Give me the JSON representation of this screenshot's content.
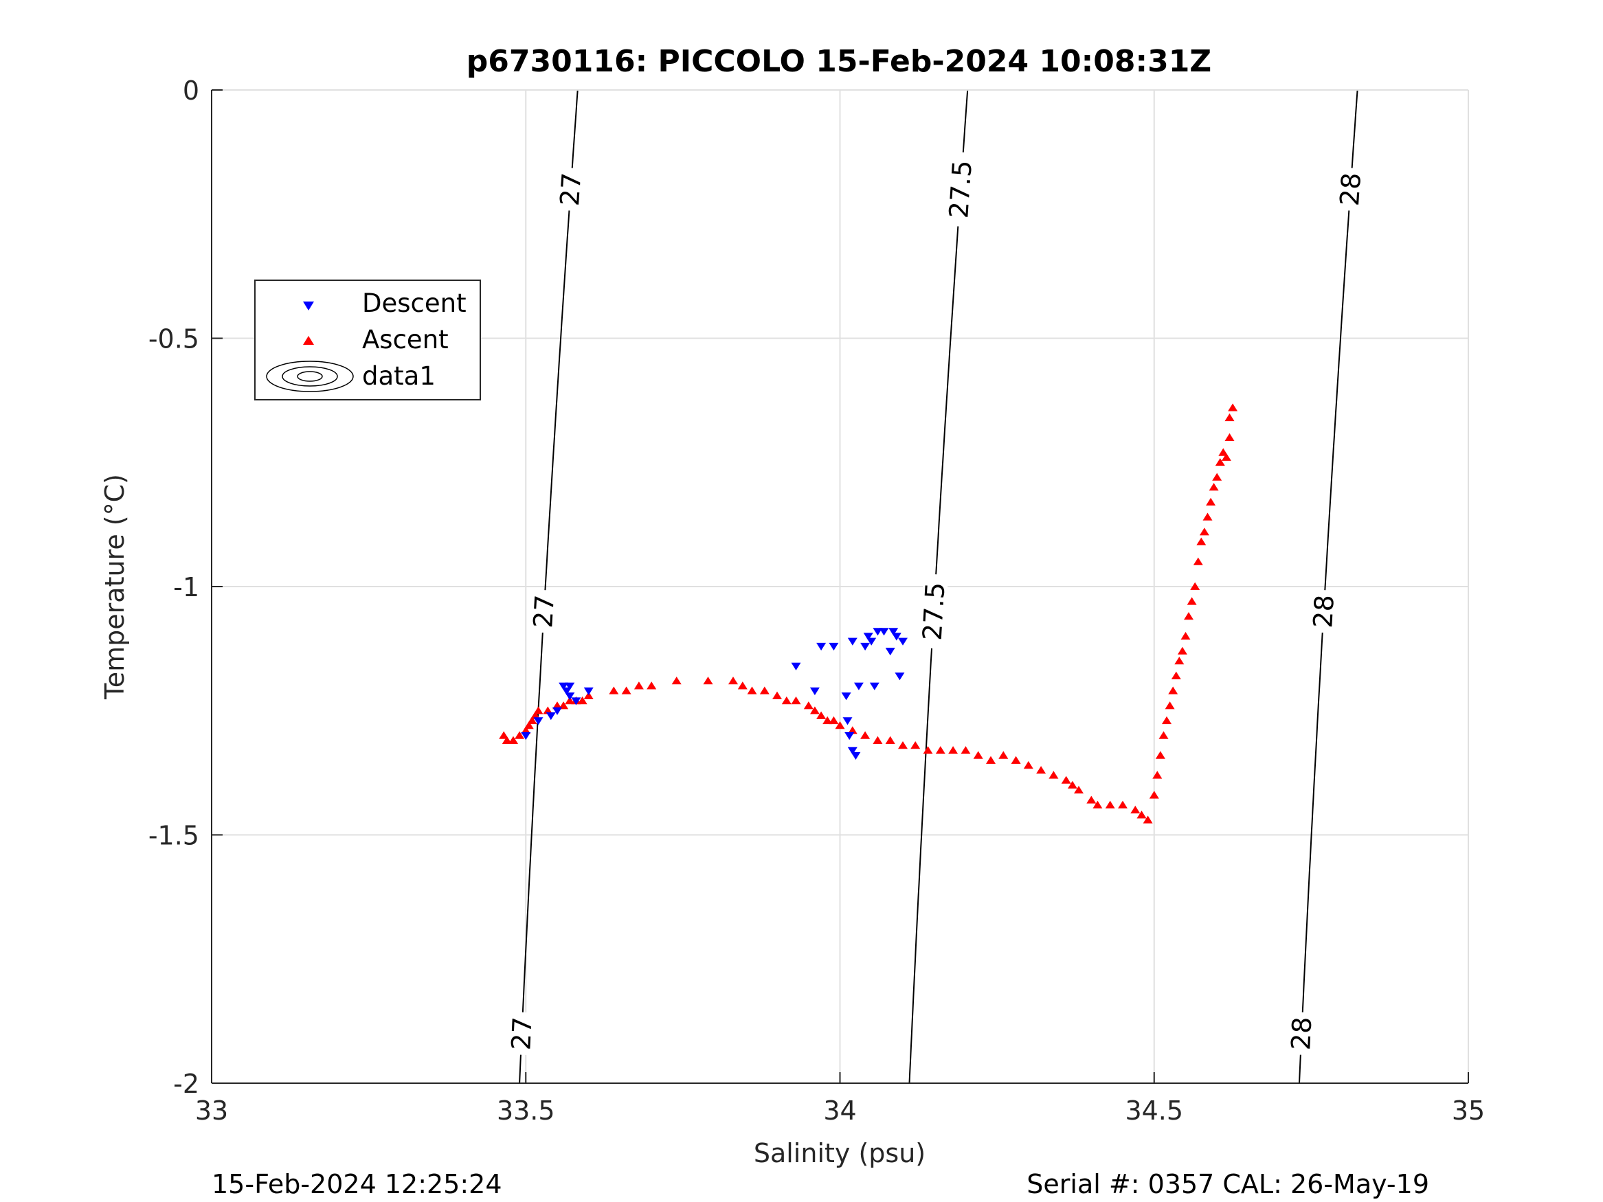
{
  "chart_data": {
    "type": "scatter",
    "title": "p6730116: PICCOLO 15-Feb-2024 10:08:31Z",
    "xlabel": "Salinity (psu)",
    "ylabel": "Temperature (°C)",
    "xlim": [
      33,
      35
    ],
    "ylim": [
      -2,
      0
    ],
    "xticks": [
      "33",
      "33.5",
      "34",
      "34.5",
      "35"
    ],
    "yticks": [
      "0",
      "-0.5",
      "-1",
      "-1.5",
      "-2"
    ],
    "grid": true,
    "legend_position": "upper-left",
    "legend": [
      "Descent",
      "Ascent",
      "data1"
    ],
    "footer_left": "15-Feb-2024 12:25:24",
    "footer_right": "Serial #: 0357  CAL: 26-May-19",
    "series": [
      {
        "name": "Descent",
        "marker": "triangle-down",
        "color": "#0000ff",
        "points": [
          [
            33.5,
            -1.3
          ],
          [
            33.52,
            -1.27
          ],
          [
            33.54,
            -1.26
          ],
          [
            33.55,
            -1.25
          ],
          [
            33.56,
            -1.2
          ],
          [
            33.565,
            -1.21
          ],
          [
            33.57,
            -1.2
          ],
          [
            33.57,
            -1.22
          ],
          [
            33.58,
            -1.23
          ],
          [
            33.6,
            -1.21
          ],
          [
            33.93,
            -1.16
          ],
          [
            33.96,
            -1.21
          ],
          [
            33.97,
            -1.12
          ],
          [
            33.99,
            -1.12
          ],
          [
            34.01,
            -1.22
          ],
          [
            34.012,
            -1.27
          ],
          [
            34.015,
            -1.3
          ],
          [
            34.02,
            -1.11
          ],
          [
            34.02,
            -1.33
          ],
          [
            34.025,
            -1.34
          ],
          [
            34.03,
            -1.2
          ],
          [
            34.04,
            -1.12
          ],
          [
            34.045,
            -1.1
          ],
          [
            34.05,
            -1.11
          ],
          [
            34.055,
            -1.2
          ],
          [
            34.06,
            -1.09
          ],
          [
            34.07,
            -1.09
          ],
          [
            34.08,
            -1.13
          ],
          [
            34.085,
            -1.09
          ],
          [
            34.09,
            -1.1
          ],
          [
            34.095,
            -1.18
          ],
          [
            34.1,
            -1.11
          ]
        ]
      },
      {
        "name": "Ascent",
        "marker": "triangle-up",
        "color": "#ff0000",
        "points": [
          [
            33.465,
            -1.3
          ],
          [
            33.47,
            -1.31
          ],
          [
            33.48,
            -1.31
          ],
          [
            33.49,
            -1.3
          ],
          [
            33.5,
            -1.29
          ],
          [
            33.505,
            -1.28
          ],
          [
            33.51,
            -1.27
          ],
          [
            33.515,
            -1.26
          ],
          [
            33.52,
            -1.25
          ],
          [
            33.535,
            -1.25
          ],
          [
            33.55,
            -1.24
          ],
          [
            33.56,
            -1.24
          ],
          [
            33.57,
            -1.23
          ],
          [
            33.58,
            -1.23
          ],
          [
            33.59,
            -1.23
          ],
          [
            33.6,
            -1.22
          ],
          [
            33.64,
            -1.21
          ],
          [
            33.66,
            -1.21
          ],
          [
            33.68,
            -1.2
          ],
          [
            33.7,
            -1.2
          ],
          [
            33.74,
            -1.19
          ],
          [
            33.79,
            -1.19
          ],
          [
            33.83,
            -1.19
          ],
          [
            33.845,
            -1.2
          ],
          [
            33.86,
            -1.21
          ],
          [
            33.88,
            -1.21
          ],
          [
            33.9,
            -1.22
          ],
          [
            33.915,
            -1.23
          ],
          [
            33.93,
            -1.23
          ],
          [
            33.95,
            -1.24
          ],
          [
            33.96,
            -1.25
          ],
          [
            33.97,
            -1.26
          ],
          [
            33.98,
            -1.27
          ],
          [
            33.99,
            -1.27
          ],
          [
            34.0,
            -1.28
          ],
          [
            34.02,
            -1.29
          ],
          [
            34.04,
            -1.3
          ],
          [
            34.06,
            -1.31
          ],
          [
            34.08,
            -1.31
          ],
          [
            34.1,
            -1.32
          ],
          [
            34.12,
            -1.32
          ],
          [
            34.14,
            -1.33
          ],
          [
            34.16,
            -1.33
          ],
          [
            34.18,
            -1.33
          ],
          [
            34.2,
            -1.33
          ],
          [
            34.22,
            -1.34
          ],
          [
            34.24,
            -1.35
          ],
          [
            34.26,
            -1.34
          ],
          [
            34.28,
            -1.35
          ],
          [
            34.3,
            -1.36
          ],
          [
            34.32,
            -1.37
          ],
          [
            34.34,
            -1.38
          ],
          [
            34.36,
            -1.39
          ],
          [
            34.37,
            -1.4
          ],
          [
            34.38,
            -1.41
          ],
          [
            34.4,
            -1.43
          ],
          [
            34.41,
            -1.44
          ],
          [
            34.43,
            -1.44
          ],
          [
            34.45,
            -1.44
          ],
          [
            34.47,
            -1.45
          ],
          [
            34.48,
            -1.46
          ],
          [
            34.49,
            -1.47
          ],
          [
            34.5,
            -1.42
          ],
          [
            34.505,
            -1.38
          ],
          [
            34.51,
            -1.34
          ],
          [
            34.515,
            -1.3
          ],
          [
            34.52,
            -1.27
          ],
          [
            34.525,
            -1.24
          ],
          [
            34.53,
            -1.21
          ],
          [
            34.535,
            -1.18
          ],
          [
            34.54,
            -1.15
          ],
          [
            34.545,
            -1.13
          ],
          [
            34.55,
            -1.1
          ],
          [
            34.555,
            -1.06
          ],
          [
            34.56,
            -1.03
          ],
          [
            34.565,
            -1.0
          ],
          [
            34.57,
            -0.95
          ],
          [
            34.575,
            -0.91
          ],
          [
            34.58,
            -0.89
          ],
          [
            34.585,
            -0.86
          ],
          [
            34.59,
            -0.83
          ],
          [
            34.595,
            -0.8
          ],
          [
            34.6,
            -0.78
          ],
          [
            34.605,
            -0.75
          ],
          [
            34.61,
            -0.73
          ],
          [
            34.615,
            -0.74
          ],
          [
            34.62,
            -0.7
          ],
          [
            34.62,
            -0.66
          ],
          [
            34.625,
            -0.64
          ]
        ]
      },
      {
        "name": "data1",
        "marker": "contour",
        "color": "#000000",
        "levels": [
          27,
          27.5,
          28
        ]
      }
    ]
  }
}
